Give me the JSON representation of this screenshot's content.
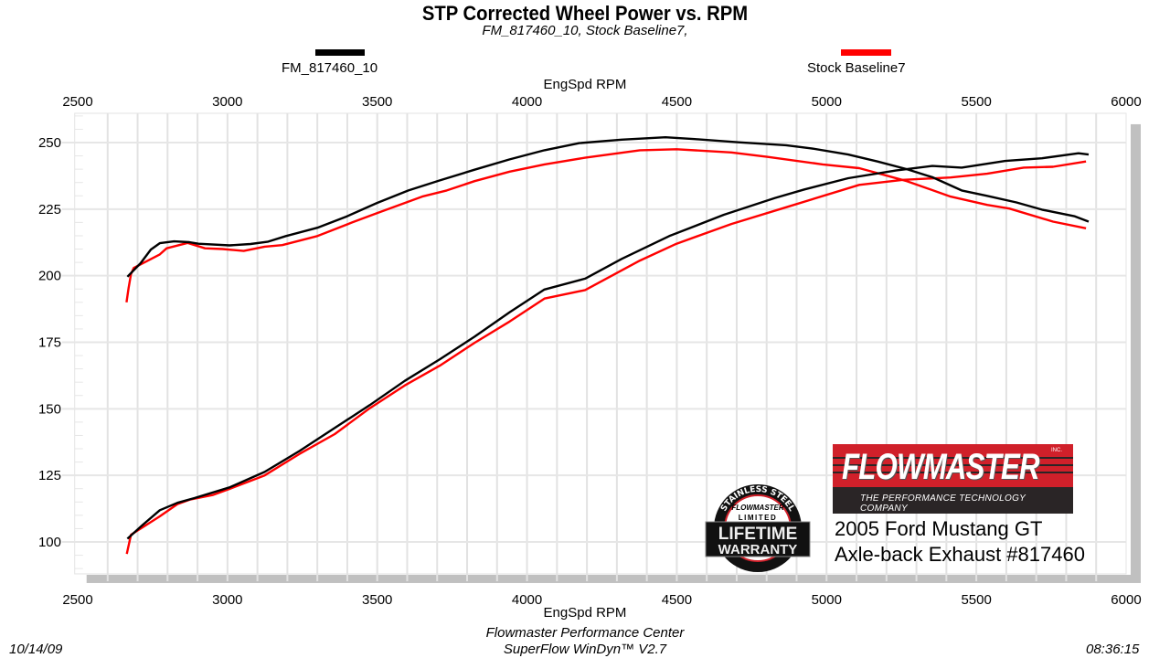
{
  "chart_data": {
    "type": "line",
    "title": "STP Corrected Wheel Power vs. RPM",
    "subtitle": "FM_817460_10, Stock Baseline7,",
    "xlabel": "EngSpd  RPM",
    "ylabel": "",
    "xlim": [
      2490,
      6000
    ],
    "ylim": [
      88,
      261
    ],
    "xticks": [
      "2500",
      "3000",
      "3500",
      "4000",
      "4500",
      "5000",
      "5500",
      "6000"
    ],
    "yticks": [
      "100",
      "125",
      "150",
      "175",
      "200",
      "225",
      "250"
    ],
    "grid": true,
    "legend_position": "top",
    "series": [
      {
        "name": "FM_817460_10",
        "color": "#000000",
        "curves": [
          {
            "x": [
              2666,
              2710,
              2744,
              2774,
              2822,
              2873,
              2903,
              3007,
              3077,
              3136,
              3195,
              3300,
              3399,
              3499,
              3604,
              3709,
              3825,
              3942,
              4058,
              4175,
              4316,
              4462,
              4560,
              4706,
              4865,
              4950,
              5072,
              5170,
              5268,
              5353,
              5451,
              5536,
              5634,
              5719,
              5829,
              5875
            ],
            "y": [
              199.6,
              204.7,
              209.8,
              212.2,
              212.9,
              212.6,
              212.0,
              211.4,
              211.9,
              212.8,
              214.9,
              218.0,
              222.3,
              227.3,
              232.0,
              235.8,
              239.8,
              243.7,
              247.1,
              249.8,
              251.1,
              252.0,
              251.3,
              250.1,
              249.0,
              247.8,
              245.5,
              242.9,
              240.0,
              237.0,
              232.0,
              230.0,
              227.5,
              224.8,
              222.3,
              220.3
            ]
          },
          {
            "x": [
              2666,
              2715,
              2774,
              2833,
              2891,
              3007,
              3124,
              3241,
              3358,
              3475,
              3592,
              3709,
              3825,
              3942,
              4058,
              4194,
              4316,
              4475,
              4657,
              4828,
              4926,
              5072,
              5231,
              5353,
              5451,
              5597,
              5719,
              5841,
              5875
            ],
            "y": [
              101.2,
              106.2,
              111.9,
              114.7,
              116.5,
              120.5,
              126.3,
              134.2,
              142.8,
              151.4,
              160.5,
              168.6,
              177.1,
              186.3,
              194.8,
              198.9,
              206.3,
              214.9,
              222.9,
              229.2,
              232.4,
              236.6,
              239.5,
              241.2,
              240.6,
              243.1,
              244.1,
              246.0,
              245.5
            ]
          }
        ]
      },
      {
        "name": "Stock Baseline7",
        "color": "#ff0000",
        "curves": [
          {
            "x": [
              2663,
              2670,
              2678,
              2687,
              2774,
              2797,
              2867,
              2925,
              2984,
              3054,
              3124,
              3183,
              3300,
              3416,
              3499,
              3650,
              3732,
              3825,
              3942,
              4058,
              4194,
              4377,
              4499,
              4682,
              4804,
              4987,
              5109,
              5268,
              5414,
              5536,
              5610,
              5756,
              5866
            ],
            "y": [
              190.0,
              195.4,
              200.6,
              202.9,
              208.0,
              210.3,
              212.3,
              210.3,
              210.0,
              209.3,
              210.9,
              211.5,
              214.9,
              220.0,
              223.5,
              229.7,
              232.0,
              235.5,
              239.1,
              241.8,
              244.3,
              247.1,
              247.5,
              246.3,
              244.6,
              241.8,
              240.4,
              235.5,
              229.7,
              226.6,
              225.2,
              220.3,
              217.8
            ]
          },
          {
            "x": [
              2664,
              2678,
              2774,
              2833,
              2874,
              2950,
              3007,
              3124,
              3241,
              3358,
              3475,
              3592,
              3709,
              3825,
              3942,
              4058,
              4194,
              4377,
              4499,
              4682,
              4865,
              5109,
              5255,
              5414,
              5536,
              5658,
              5756,
              5866
            ],
            "y": [
              95.5,
              102.7,
              109.6,
              114.2,
              115.9,
              117.6,
              119.9,
              125.0,
              133.1,
              140.5,
              150.2,
              158.8,
              166.2,
              174.8,
              182.8,
              191.4,
              194.6,
              205.7,
              212.0,
              219.4,
              225.7,
              234.1,
              236.0,
              236.9,
              238.3,
              240.6,
              240.9,
              242.9
            ]
          }
        ]
      }
    ]
  },
  "footer": {
    "date": "10/14/09",
    "center_line1": "Flowmaster Performance Center",
    "center_line2": "SuperFlow WinDyn™ V2.7",
    "time": "08:36:15"
  },
  "branding": {
    "logo_word": "FLOWMASTER",
    "logo_inc": "INC.",
    "logo_tagline": "THE PERFORMANCE TECHNOLOGY COMPANY",
    "seal_text": [
      "STAINLESS STEEL",
      "FLOWMASTER",
      "LIMITED",
      "LIFETIME",
      "WARRANTY"
    ],
    "vehicle": "2005 Ford Mustang GT",
    "product": "Axle-back Exhaust #817460",
    "red": "#d0202a"
  }
}
